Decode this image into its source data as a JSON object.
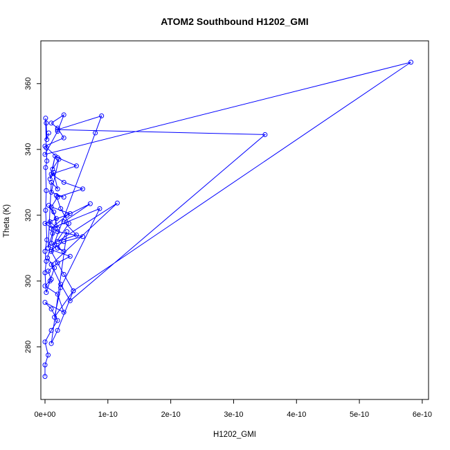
{
  "chart_data": {
    "type": "line",
    "title": "ATOM2 Southbound H1202_GMI",
    "xlabel": "H1202_GMI",
    "ylabel": "Theta (K)",
    "xlim": [
      -6.6e-12,
      6.1e-10
    ],
    "ylim": [
      264,
      373
    ],
    "x_ticks": [
      0,
      1e-10,
      2e-10,
      3e-10,
      4e-10,
      5e-10,
      6e-10
    ],
    "x_tick_labels": [
      "0e+00",
      "1e-10",
      "2e-10",
      "3e-10",
      "4e-10",
      "5e-10",
      "6e-10"
    ],
    "y_ticks": [
      280,
      300,
      320,
      340,
      360
    ],
    "y_tick_labels": [
      "280",
      "300",
      "320",
      "340",
      "360"
    ],
    "grid": false,
    "series_color": "#0000ff",
    "series": [
      {
        "points": [
          [
            0.0,
            271.0
          ],
          [
            0.0,
            274.5
          ],
          [
            5e-12,
            277.5
          ],
          [
            0.0,
            281.5
          ],
          [
            1e-11,
            285.0
          ],
          [
            2e-11,
            288.0
          ],
          [
            1e-11,
            291.5
          ],
          [
            0.0,
            293.5
          ],
          [
            3e-11,
            290.5
          ],
          [
            2e-11,
            296.0
          ],
          [
            0.0,
            298.5
          ],
          [
            1e-11,
            300.5
          ],
          [
            5e-12,
            303.0
          ],
          [
            2e-11,
            305.5
          ],
          [
            4e-11,
            307.5
          ],
          [
            1e-11,
            309.5
          ],
          [
            3e-11,
            312.0
          ],
          [
            6e-11,
            313.5
          ],
          [
            2e-11,
            315.0
          ],
          [
            0.0,
            317.5
          ],
          [
            4e-11,
            320.5
          ],
          [
            1e-11,
            322.5
          ],
          [
            2e-11,
            325.5
          ],
          [
            6e-11,
            328.0
          ],
          [
            3e-11,
            330.0
          ],
          [
            1e-11,
            332.5
          ],
          [
            5e-11,
            335.0
          ],
          [
            2e-11,
            337.5
          ],
          [
            0.0,
            341.0
          ],
          [
            3e-11,
            343.5
          ],
          [
            2e-11,
            346.5
          ],
          [
            1e-11,
            348.0
          ],
          [
            3e-11,
            350.5
          ],
          [
            2e-11,
            345.5
          ],
          [
            0.0,
            338.5
          ],
          [
            5.82e-10,
            366.5
          ],
          [
            4.5e-11,
            297.0
          ],
          [
            3e-11,
            302.0
          ],
          [
            1e-11,
            309.0
          ],
          [
            8e-11,
            345.0
          ],
          [
            9e-11,
            350.2
          ],
          [
            2e-11,
            346.0
          ],
          [
            3.5e-10,
            344.5
          ],
          [
            4e-11,
            294.0
          ],
          [
            2.5e-11,
            299.0
          ],
          [
            1e-11,
            305.0
          ],
          [
            1.15e-10,
            323.7
          ],
          [
            2e-11,
            312.0
          ],
          [
            5e-11,
            314.0
          ],
          [
            3e-11,
            318.0
          ],
          [
            7.2e-11,
            323.5
          ],
          [
            3.5e-11,
            320.0
          ],
          [
            1e-11,
            316.0
          ],
          [
            8.7e-11,
            322.0
          ],
          [
            2.5e-11,
            298.0
          ],
          [
            1.5e-11,
            289.0
          ],
          [
            4.5e-11,
            297.0
          ],
          [
            2e-11,
            285.0
          ],
          [
            1e-11,
            281.0
          ],
          [
            3.5e-11,
            315.0
          ],
          [
            2e-11,
            310.0
          ],
          [
            3e-11,
            309.0
          ],
          [
            1.5e-11,
            311.0
          ],
          [
            3.8e-11,
            317.5
          ],
          [
            2.5e-11,
            322.0
          ],
          [
            1.8e-11,
            326.0
          ],
          [
            3e-11,
            325.5
          ],
          [
            1e-11,
            327.0
          ],
          [
            2.2e-11,
            337.0
          ],
          [
            1.2e-11,
            334.0
          ],
          [
            1.6e-11,
            338.0
          ],
          [
            8e-12,
            331.0
          ],
          [
            1.4e-11,
            333.0
          ],
          [
            2e-11,
            328.0
          ],
          [
            1e-11,
            330.0
          ],
          [
            5e-12,
            310.0
          ],
          [
            1.2e-11,
            314.5
          ],
          [
            8e-12,
            318.0
          ],
          [
            2e-11,
            316.0
          ],
          [
            1.4e-11,
            321.0
          ],
          [
            6e-12,
            323.0
          ],
          [
            1.8e-11,
            319.0
          ],
          [
            1e-11,
            311.5
          ],
          [
            4e-12,
            307.0
          ],
          [
            1.5e-11,
            304.0
          ],
          [
            8e-12,
            300.0
          ],
          [
            2e-12,
            296.5
          ],
          [
            0.0,
            302.5
          ],
          [
            2e-12,
            306.0
          ],
          [
            0.0,
            309.0
          ],
          [
            3e-12,
            312.5
          ],
          [
            1e-12,
            321.5
          ],
          [
            2e-12,
            327.5
          ],
          [
            1e-12,
            334.5
          ],
          [
            3e-12,
            336.5
          ],
          [
            2e-12,
            340.5
          ],
          [
            1e-12,
            349.5
          ],
          [
            2e-12,
            348.0
          ],
          [
            3e-12,
            343.0
          ],
          [
            6e-12,
            345.0
          ]
        ]
      }
    ]
  }
}
